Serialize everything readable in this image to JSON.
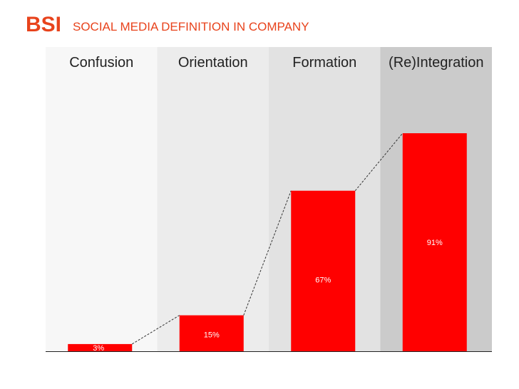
{
  "header": {
    "brand": "BSI",
    "title": "SOCIAL MEDIA DEFINITION IN COMPANY"
  },
  "colors": {
    "brand": "#e8431c",
    "bar": "#ff0000",
    "band_backgrounds": [
      "#f7f7f7",
      "#ececec",
      "#e2e2e2",
      "#cbcbcb"
    ]
  },
  "chart_data": {
    "type": "bar",
    "title": "",
    "xlabel": "",
    "ylabel": "",
    "categories": [
      "Confusion",
      "Orientation",
      "Formation",
      "(Re)Integration"
    ],
    "values": [
      3,
      15,
      67,
      91
    ],
    "value_labels": [
      "3%",
      "15%",
      "67%",
      "91%"
    ],
    "ylim": [
      0,
      100
    ],
    "grid": false,
    "legend": "none",
    "connector": "dashed line linking adjacent bar tops"
  }
}
